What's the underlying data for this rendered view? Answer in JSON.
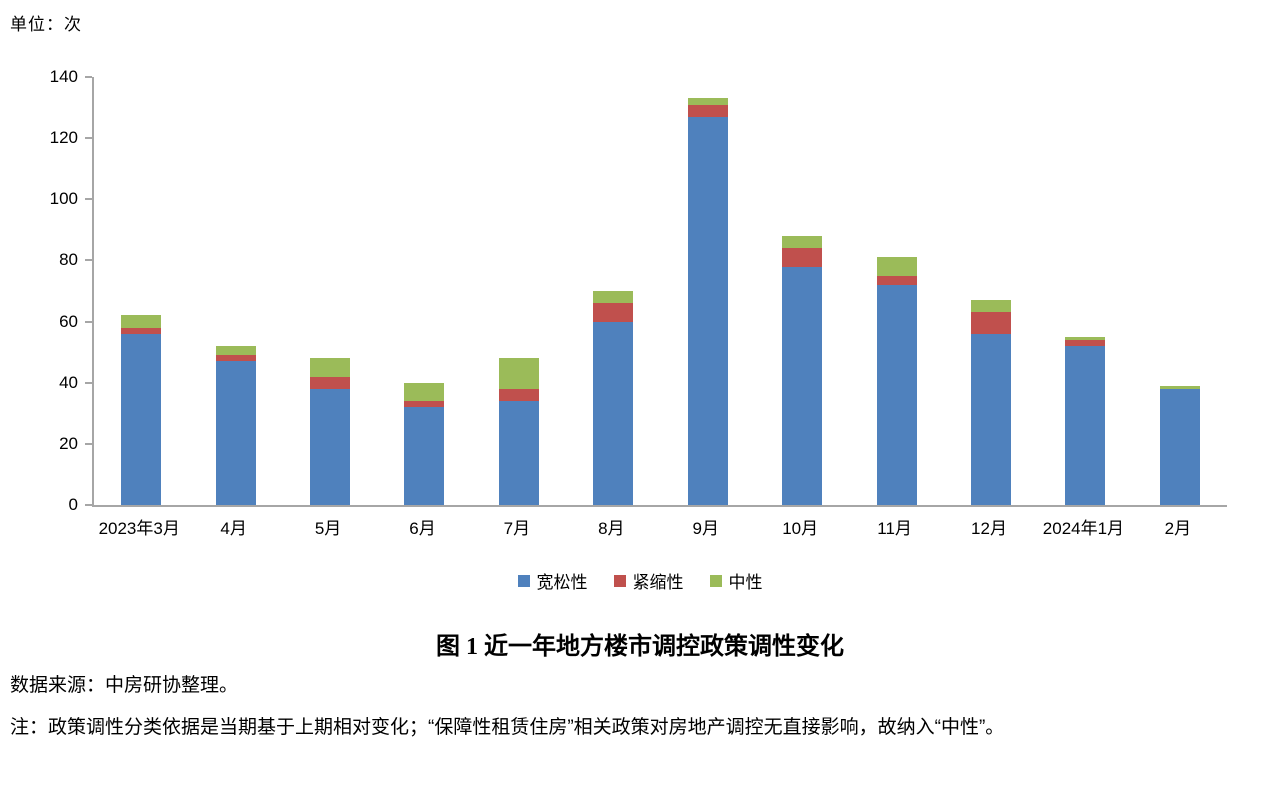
{
  "unit_label": "单位：次",
  "figure_title": "图 1 近一年地方楼市调控政策调性变化",
  "source_text": "数据来源：中房研协整理。",
  "note_text": "注：政策调性分类依据是当期基于上期相对变化；“保障性租赁住房”相关政策对房地产调控无直接影响，故纳入“中性”。",
  "chart_data": {
    "type": "bar",
    "stacked": true,
    "title": "图 1 近一年地方楼市调控政策调性变化",
    "xlabel": "",
    "ylabel": "单位：次",
    "ylim": [
      0,
      140
    ],
    "ytick_step": 20,
    "grid": false,
    "legend_position": "bottom",
    "axis_color": "#A6A6A6",
    "categories": [
      "2023年3月",
      "4月",
      "5月",
      "6月",
      "7月",
      "8月",
      "9月",
      "10月",
      "11月",
      "12月",
      "2024年1月",
      "2月"
    ],
    "series": [
      {
        "name": "宽松性",
        "color": "#4F81BD",
        "values": [
          56,
          47,
          38,
          32,
          34,
          60,
          127,
          78,
          72,
          56,
          52,
          38
        ]
      },
      {
        "name": "紧缩性",
        "color": "#C0504D",
        "values": [
          2,
          2,
          4,
          2,
          4,
          6,
          4,
          6,
          3,
          7,
          2,
          0
        ]
      },
      {
        "name": "中性",
        "color": "#9BBB59",
        "values": [
          4,
          3,
          6,
          6,
          10,
          4,
          2,
          4,
          6,
          4,
          1,
          1
        ]
      }
    ],
    "totals": [
      62,
      52,
      48,
      40,
      48,
      70,
      133,
      88,
      81,
      67,
      55,
      39
    ]
  }
}
